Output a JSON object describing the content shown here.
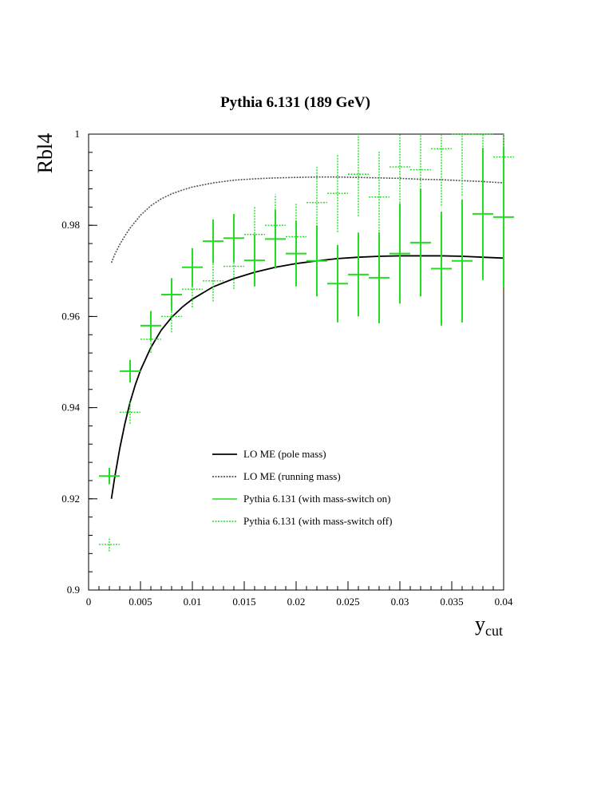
{
  "chart_data": {
    "type": "line",
    "title": "Pythia 6.131 (189 GeV)",
    "ylabel": "Rbl4",
    "xlabel": "y",
    "xlabel_sub": "cut",
    "xlim": [
      0,
      0.04
    ],
    "ylim": [
      0.9,
      1.0
    ],
    "grid": false,
    "legend_placement": "center-left",
    "x_ticks": [
      {
        "value": 0,
        "label": "0"
      },
      {
        "value": 0.005,
        "label": "0.005"
      },
      {
        "value": 0.01,
        "label": "0.01"
      },
      {
        "value": 0.015,
        "label": "0.015"
      },
      {
        "value": 0.02,
        "label": "0.02"
      },
      {
        "value": 0.025,
        "label": "0.025"
      },
      {
        "value": 0.03,
        "label": "0.03"
      },
      {
        "value": 0.035,
        "label": "0.035"
      },
      {
        "value": 0.04,
        "label": "0.04"
      }
    ],
    "y_ticks": [
      {
        "value": 0.9,
        "label": "0.9"
      },
      {
        "value": 0.92,
        "label": "0.92"
      },
      {
        "value": 0.94,
        "label": "0.94"
      },
      {
        "value": 0.96,
        "label": "0.96"
      },
      {
        "value": 0.98,
        "label": "0.98"
      },
      {
        "value": 1.0,
        "label": "1"
      }
    ],
    "series": [
      {
        "name": "LO ME (pole mass)",
        "kind": "curve",
        "style": "solid",
        "color": "#000000",
        "x": [
          0.0022,
          0.0025,
          0.003,
          0.0035,
          0.004,
          0.0045,
          0.005,
          0.006,
          0.007,
          0.008,
          0.009,
          0.01,
          0.012,
          0.014,
          0.016,
          0.018,
          0.02,
          0.022,
          0.024,
          0.026,
          0.028,
          0.03,
          0.032,
          0.034,
          0.036,
          0.038,
          0.04
        ],
        "y": [
          0.92,
          0.9245,
          0.931,
          0.9365,
          0.9412,
          0.945,
          0.9482,
          0.9532,
          0.957,
          0.9598,
          0.962,
          0.9638,
          0.9665,
          0.9683,
          0.9697,
          0.9708,
          0.9716,
          0.9722,
          0.9727,
          0.973,
          0.9732,
          0.9733,
          0.9733,
          0.9733,
          0.9732,
          0.973,
          0.9728
        ]
      },
      {
        "name": "LO ME (running mass)",
        "kind": "curve",
        "style": "dotted",
        "color": "#555555",
        "x": [
          0.0022,
          0.0025,
          0.003,
          0.0035,
          0.004,
          0.0045,
          0.005,
          0.006,
          0.007,
          0.008,
          0.009,
          0.01,
          0.012,
          0.014,
          0.016,
          0.018,
          0.02,
          0.022,
          0.024,
          0.026,
          0.028,
          0.03,
          0.032,
          0.034,
          0.036,
          0.038,
          0.04
        ],
        "y": [
          0.9718,
          0.9735,
          0.9758,
          0.9777,
          0.9794,
          0.9808,
          0.9822,
          0.9843,
          0.9858,
          0.9869,
          0.9877,
          0.9884,
          0.9893,
          0.9899,
          0.9902,
          0.9904,
          0.9905,
          0.9906,
          0.9906,
          0.9905,
          0.9904,
          0.9903,
          0.9901,
          0.99,
          0.9898,
          0.9896,
          0.9893
        ]
      },
      {
        "name": "Pythia 6.131 (with mass-switch on)",
        "kind": "errorbars",
        "style": "solid",
        "color": "#22dd22",
        "xerr": 0.001,
        "points": [
          {
            "x": 0.002,
            "y": 0.925,
            "err": 0.0018
          },
          {
            "x": 0.004,
            "y": 0.948,
            "err": 0.0025
          },
          {
            "x": 0.006,
            "y": 0.958,
            "err": 0.0032
          },
          {
            "x": 0.008,
            "y": 0.9648,
            "err": 0.0036
          },
          {
            "x": 0.01,
            "y": 0.9708,
            "err": 0.0042
          },
          {
            "x": 0.012,
            "y": 0.9765,
            "err": 0.0048
          },
          {
            "x": 0.014,
            "y": 0.9772,
            "err": 0.0053
          },
          {
            "x": 0.016,
            "y": 0.9723,
            "err": 0.0057
          },
          {
            "x": 0.018,
            "y": 0.977,
            "err": 0.0065
          },
          {
            "x": 0.02,
            "y": 0.9738,
            "err": 0.0072
          },
          {
            "x": 0.022,
            "y": 0.9722,
            "err": 0.0078
          },
          {
            "x": 0.024,
            "y": 0.9672,
            "err": 0.0085
          },
          {
            "x": 0.026,
            "y": 0.9692,
            "err": 0.0092
          },
          {
            "x": 0.028,
            "y": 0.9685,
            "err": 0.01
          },
          {
            "x": 0.03,
            "y": 0.9738,
            "err": 0.011
          },
          {
            "x": 0.032,
            "y": 0.9762,
            "err": 0.0118
          },
          {
            "x": 0.034,
            "y": 0.9705,
            "err": 0.0125
          },
          {
            "x": 0.036,
            "y": 0.9722,
            "err": 0.0135
          },
          {
            "x": 0.038,
            "y": 0.9825,
            "err": 0.0145
          },
          {
            "x": 0.04,
            "y": 0.9818,
            "err": 0.0155
          }
        ]
      },
      {
        "name": "Pythia 6.131 (with mass-switch off)",
        "kind": "errorbars",
        "style": "dotted",
        "color": "#22dd22",
        "xerr": 0.001,
        "points": [
          {
            "x": 0.002,
            "y": 0.91,
            "err": 0.0015
          },
          {
            "x": 0.004,
            "y": 0.939,
            "err": 0.0025
          },
          {
            "x": 0.006,
            "y": 0.955,
            "err": 0.003
          },
          {
            "x": 0.008,
            "y": 0.96,
            "err": 0.0035
          },
          {
            "x": 0.01,
            "y": 0.966,
            "err": 0.004
          },
          {
            "x": 0.012,
            "y": 0.9678,
            "err": 0.0045
          },
          {
            "x": 0.014,
            "y": 0.971,
            "err": 0.005
          },
          {
            "x": 0.016,
            "y": 0.978,
            "err": 0.006
          },
          {
            "x": 0.018,
            "y": 0.98,
            "err": 0.0068
          },
          {
            "x": 0.02,
            "y": 0.9775,
            "err": 0.0072
          },
          {
            "x": 0.022,
            "y": 0.985,
            "err": 0.0078
          },
          {
            "x": 0.024,
            "y": 0.987,
            "err": 0.0085
          },
          {
            "x": 0.026,
            "y": 0.9912,
            "err": 0.0092
          },
          {
            "x": 0.028,
            "y": 0.9862,
            "err": 0.01
          },
          {
            "x": 0.03,
            "y": 0.9928,
            "err": 0.011
          },
          {
            "x": 0.032,
            "y": 0.9922,
            "err": 0.0118
          },
          {
            "x": 0.034,
            "y": 0.9968,
            "err": 0.0125
          },
          {
            "x": 0.036,
            "y": 1.0,
            "err": 0.0135
          },
          {
            "x": 0.038,
            "y": 1.0,
            "err": 0.0145
          },
          {
            "x": 0.04,
            "y": 0.995,
            "err": 0.0155
          }
        ]
      }
    ]
  }
}
